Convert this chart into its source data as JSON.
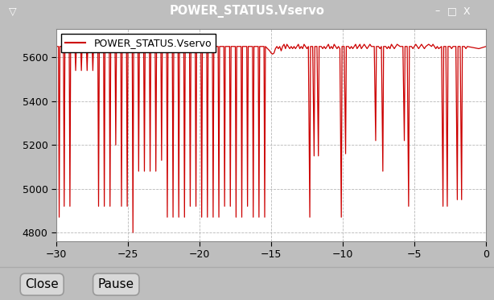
{
  "title": "POWER_STATUS.Vservo",
  "title_bar_color": "#e07030",
  "title_bar_text_color": "#ffffff",
  "legend_label": "POWER_STATUS.Vservo",
  "line_color": "#cc0000",
  "bg_outer": "#bebebe",
  "bg_plot": "#ffffff",
  "xlim": [
    -30,
    0
  ],
  "ylim": [
    4760,
    5730
  ],
  "yticks": [
    4800,
    5000,
    5200,
    5400,
    5600
  ],
  "xticks": [
    -30,
    -25,
    -20,
    -15,
    -10,
    -5,
    0
  ],
  "grid_color": "#b0b0b0",
  "grid_style": "--",
  "button_close": "Close",
  "button_pause": "Pause",
  "spike_data": [
    [
      -30.0,
      5650
    ],
    [
      -29.85,
      5650
    ],
    [
      -29.8,
      4870
    ],
    [
      -29.75,
      5650
    ],
    [
      -29.5,
      5650
    ],
    [
      -29.45,
      4920
    ],
    [
      -29.4,
      5650
    ],
    [
      -29.1,
      5650
    ],
    [
      -29.05,
      4920
    ],
    [
      -29.0,
      5650
    ],
    [
      -28.7,
      5650
    ],
    [
      -28.65,
      5540
    ],
    [
      -28.6,
      5650
    ],
    [
      -28.3,
      5650
    ],
    [
      -28.25,
      5540
    ],
    [
      -28.2,
      5650
    ],
    [
      -27.9,
      5650
    ],
    [
      -27.85,
      5540
    ],
    [
      -27.8,
      5650
    ],
    [
      -27.5,
      5650
    ],
    [
      -27.45,
      5540
    ],
    [
      -27.4,
      5650
    ],
    [
      -27.1,
      5650
    ],
    [
      -27.05,
      4920
    ],
    [
      -27.0,
      5650
    ],
    [
      -26.7,
      5650
    ],
    [
      -26.65,
      4920
    ],
    [
      -26.6,
      5650
    ],
    [
      -26.3,
      5650
    ],
    [
      -26.25,
      4920
    ],
    [
      -26.2,
      5650
    ],
    [
      -25.9,
      5650
    ],
    [
      -25.85,
      5200
    ],
    [
      -25.8,
      5650
    ],
    [
      -25.5,
      5650
    ],
    [
      -25.45,
      4920
    ],
    [
      -25.4,
      5650
    ],
    [
      -25.1,
      5650
    ],
    [
      -25.05,
      4920
    ],
    [
      -25.0,
      5650
    ],
    [
      -24.7,
      5650
    ],
    [
      -24.65,
      4800
    ],
    [
      -24.6,
      5650
    ],
    [
      -24.3,
      5650
    ],
    [
      -24.25,
      5080
    ],
    [
      -24.2,
      5650
    ],
    [
      -23.9,
      5650
    ],
    [
      -23.85,
      5080
    ],
    [
      -23.8,
      5650
    ],
    [
      -23.5,
      5650
    ],
    [
      -23.45,
      5080
    ],
    [
      -23.4,
      5650
    ],
    [
      -23.1,
      5650
    ],
    [
      -23.05,
      5080
    ],
    [
      -23.0,
      5650
    ],
    [
      -22.7,
      5650
    ],
    [
      -22.65,
      5130
    ],
    [
      -22.6,
      5650
    ],
    [
      -22.3,
      5650
    ],
    [
      -22.25,
      4870
    ],
    [
      -22.2,
      5650
    ],
    [
      -21.9,
      5650
    ],
    [
      -21.85,
      4870
    ],
    [
      -21.8,
      5650
    ],
    [
      -21.5,
      5650
    ],
    [
      -21.45,
      4870
    ],
    [
      -21.4,
      5650
    ],
    [
      -21.1,
      5650
    ],
    [
      -21.05,
      4870
    ],
    [
      -21.0,
      5650
    ],
    [
      -20.7,
      5650
    ],
    [
      -20.65,
      4920
    ],
    [
      -20.6,
      5650
    ],
    [
      -20.3,
      5650
    ],
    [
      -20.25,
      4920
    ],
    [
      -20.2,
      5650
    ],
    [
      -19.9,
      5650
    ],
    [
      -19.85,
      4870
    ],
    [
      -19.8,
      5650
    ],
    [
      -19.5,
      5650
    ],
    [
      -19.45,
      4870
    ],
    [
      -19.4,
      5650
    ],
    [
      -19.1,
      5650
    ],
    [
      -19.05,
      4870
    ],
    [
      -19.0,
      5650
    ],
    [
      -18.7,
      5650
    ],
    [
      -18.65,
      4870
    ],
    [
      -18.6,
      5650
    ],
    [
      -18.3,
      5650
    ],
    [
      -18.25,
      4920
    ],
    [
      -18.2,
      5650
    ],
    [
      -17.9,
      5650
    ],
    [
      -17.85,
      4920
    ],
    [
      -17.8,
      5650
    ],
    [
      -17.5,
      5650
    ],
    [
      -17.45,
      4870
    ],
    [
      -17.4,
      5650
    ],
    [
      -17.1,
      5650
    ],
    [
      -17.05,
      4870
    ],
    [
      -17.0,
      5650
    ],
    [
      -16.7,
      5650
    ],
    [
      -16.65,
      4920
    ],
    [
      -16.6,
      5650
    ],
    [
      -16.3,
      5650
    ],
    [
      -16.25,
      4870
    ],
    [
      -16.2,
      5650
    ],
    [
      -15.9,
      5650
    ],
    [
      -15.85,
      4870
    ],
    [
      -15.8,
      5650
    ],
    [
      -15.5,
      5650
    ],
    [
      -15.45,
      4870
    ],
    [
      -15.4,
      5650
    ],
    [
      -15.1,
      5630
    ],
    [
      -15.0,
      5620
    ],
    [
      -14.9,
      5615
    ],
    [
      -14.8,
      5620
    ],
    [
      -14.7,
      5640
    ],
    [
      -14.6,
      5650
    ],
    [
      -14.5,
      5640
    ],
    [
      -14.4,
      5650
    ],
    [
      -14.3,
      5630
    ],
    [
      -14.2,
      5650
    ],
    [
      -14.1,
      5660
    ],
    [
      -14.0,
      5640
    ],
    [
      -13.9,
      5660
    ],
    [
      -13.8,
      5650
    ],
    [
      -13.7,
      5640
    ],
    [
      -13.6,
      5650
    ],
    [
      -13.5,
      5640
    ],
    [
      -13.4,
      5650
    ],
    [
      -13.3,
      5640
    ],
    [
      -13.2,
      5650
    ],
    [
      -13.1,
      5660
    ],
    [
      -13.0,
      5640
    ],
    [
      -12.9,
      5650
    ],
    [
      -12.8,
      5640
    ],
    [
      -12.7,
      5660
    ],
    [
      -12.6,
      5650
    ],
    [
      -12.5,
      5640
    ],
    [
      -12.4,
      5650
    ],
    [
      -12.3,
      4870
    ],
    [
      -12.25,
      5650
    ],
    [
      -12.1,
      5650
    ],
    [
      -12.0,
      5150
    ],
    [
      -11.95,
      5650
    ],
    [
      -11.8,
      5650
    ],
    [
      -11.7,
      5150
    ],
    [
      -11.65,
      5650
    ],
    [
      -11.5,
      5650
    ],
    [
      -11.4,
      5640
    ],
    [
      -11.3,
      5650
    ],
    [
      -11.2,
      5640
    ],
    [
      -11.1,
      5650
    ],
    [
      -11.0,
      5660
    ],
    [
      -10.9,
      5640
    ],
    [
      -10.8,
      5650
    ],
    [
      -10.7,
      5640
    ],
    [
      -10.6,
      5660
    ],
    [
      -10.5,
      5650
    ],
    [
      -10.4,
      5640
    ],
    [
      -10.3,
      5650
    ],
    [
      -10.2,
      5640
    ],
    [
      -10.1,
      4870
    ],
    [
      -10.05,
      5650
    ],
    [
      -9.9,
      5650
    ],
    [
      -9.8,
      5160
    ],
    [
      -9.75,
      5650
    ],
    [
      -9.6,
      5650
    ],
    [
      -9.5,
      5640
    ],
    [
      -9.4,
      5650
    ],
    [
      -9.3,
      5640
    ],
    [
      -9.2,
      5650
    ],
    [
      -9.1,
      5660
    ],
    [
      -9.0,
      5640
    ],
    [
      -8.9,
      5650
    ],
    [
      -8.8,
      5660
    ],
    [
      -8.7,
      5640
    ],
    [
      -8.6,
      5650
    ],
    [
      -8.5,
      5660
    ],
    [
      -8.4,
      5650
    ],
    [
      -8.3,
      5640
    ],
    [
      -8.2,
      5650
    ],
    [
      -8.1,
      5660
    ],
    [
      -8.0,
      5650
    ],
    [
      -7.8,
      5650
    ],
    [
      -7.7,
      5220
    ],
    [
      -7.65,
      5650
    ],
    [
      -7.5,
      5650
    ],
    [
      -7.4,
      5640
    ],
    [
      -7.3,
      5650
    ],
    [
      -7.2,
      5080
    ],
    [
      -7.15,
      5650
    ],
    [
      -7.0,
      5650
    ],
    [
      -6.9,
      5640
    ],
    [
      -6.8,
      5650
    ],
    [
      -6.7,
      5640
    ],
    [
      -6.6,
      5660
    ],
    [
      -6.5,
      5650
    ],
    [
      -6.4,
      5640
    ],
    [
      -6.3,
      5650
    ],
    [
      -6.2,
      5660
    ],
    [
      -6.0,
      5650
    ],
    [
      -5.8,
      5650
    ],
    [
      -5.7,
      5220
    ],
    [
      -5.65,
      5650
    ],
    [
      -5.5,
      5650
    ],
    [
      -5.4,
      4920
    ],
    [
      -5.35,
      5650
    ],
    [
      -5.2,
      5650
    ],
    [
      -5.1,
      5640
    ],
    [
      -5.0,
      5650
    ],
    [
      -4.9,
      5660
    ],
    [
      -4.8,
      5650
    ],
    [
      -4.7,
      5640
    ],
    [
      -4.6,
      5650
    ],
    [
      -4.5,
      5660
    ],
    [
      -4.4,
      5650
    ],
    [
      -4.3,
      5640
    ],
    [
      -4.2,
      5650
    ],
    [
      -4.0,
      5660
    ],
    [
      -3.8,
      5650
    ],
    [
      -3.7,
      5660
    ],
    [
      -3.6,
      5650
    ],
    [
      -3.5,
      5640
    ],
    [
      -3.4,
      5650
    ],
    [
      -3.3,
      5640
    ],
    [
      -3.1,
      5650
    ],
    [
      -3.0,
      4920
    ],
    [
      -2.95,
      5650
    ],
    [
      -2.8,
      5650
    ],
    [
      -2.7,
      4920
    ],
    [
      -2.65,
      5650
    ],
    [
      -2.5,
      5650
    ],
    [
      -2.4,
      5640
    ],
    [
      -2.3,
      5650
    ],
    [
      -2.1,
      5650
    ],
    [
      -2.0,
      4950
    ],
    [
      -1.95,
      5650
    ],
    [
      -1.8,
      5650
    ],
    [
      -1.7,
      4950
    ],
    [
      -1.65,
      5650
    ],
    [
      -1.5,
      5650
    ],
    [
      -1.4,
      5640
    ],
    [
      -1.3,
      5650
    ],
    [
      -0.5,
      5640
    ],
    [
      0.0,
      5650
    ]
  ]
}
